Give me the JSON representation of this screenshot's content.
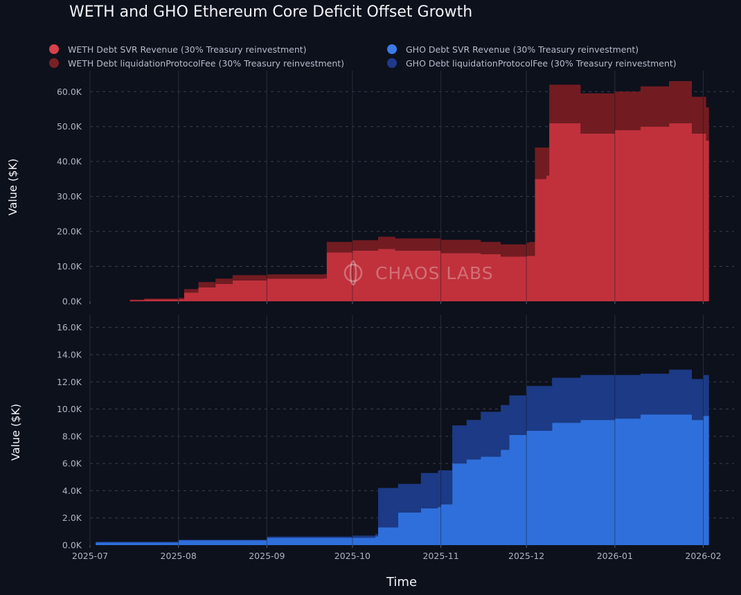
{
  "title": "WETH and GHO Ethereum Core Deficit Offset Growth",
  "legend": [
    {
      "label": "WETH Debt SVR Revenue (30% Treasury reinvestment)",
      "color": "#d8414b"
    },
    {
      "label": "WETH Debt liquidationProtocolFee (30% Treasury reinvestment)",
      "color": "#7a2024"
    },
    {
      "label": "GHO Debt SVR Revenue (30% Treasury reinvestment)",
      "color": "#3b7be8"
    },
    {
      "label": "GHO Debt liquidationProtocolFee (30% Treasury reinvestment)",
      "color": "#1f3a8c"
    }
  ],
  "watermark": "CHAOS LABS",
  "chart_data": [
    {
      "type": "area",
      "stacked": true,
      "ylabel": "Value ($K)",
      "ylim": [
        0,
        66
      ],
      "yticks": [
        0,
        10,
        20,
        30,
        40,
        50,
        60
      ],
      "ytick_labels": [
        "0.0K",
        "10.0K",
        "20.0K",
        "30.0K",
        "40.0K",
        "50.0K",
        "60.0K"
      ],
      "x": [
        "2025-07-03",
        "2025-07-15",
        "2025-07-20",
        "2025-08-01",
        "2025-08-03",
        "2025-08-08",
        "2025-08-14",
        "2025-08-20",
        "2025-09-01",
        "2025-09-15",
        "2025-09-21",
        "2025-09-22",
        "2025-10-01",
        "2025-10-10",
        "2025-10-16",
        "2025-11-01",
        "2025-11-15",
        "2025-11-22",
        "2025-12-01",
        "2025-12-02",
        "2025-12-04",
        "2025-12-08",
        "2025-12-09",
        "2025-12-20",
        "2026-01-01",
        "2026-01-10",
        "2026-01-20",
        "2026-01-28",
        "2026-02-02",
        "2026-02-03"
      ],
      "series": [
        {
          "name": "WETH Debt SVR Revenue (30% Treasury reinvestment)",
          "color": "#c0313c",
          "values": [
            0,
            0.3,
            0.5,
            0.6,
            2.5,
            4,
            5,
            6,
            6.5,
            6.5,
            6.6,
            14,
            14.5,
            15,
            14.5,
            13.8,
            13.5,
            12.8,
            13,
            13,
            35,
            36,
            51,
            48,
            49,
            50,
            51,
            48,
            46,
            43
          ]
        },
        {
          "name": "WETH Debt liquidationProtocolFee (30% Treasury reinvestment)",
          "color": "#721c21",
          "values": [
            0,
            0.2,
            0.3,
            0.4,
            1,
            1.5,
            1.5,
            1.5,
            1.2,
            1.2,
            1.2,
            3,
            3,
            3.5,
            3.5,
            3.8,
            3.5,
            3.5,
            3.8,
            4,
            9,
            8,
            11,
            11.5,
            11,
            11.5,
            12,
            10.5,
            9.5,
            12
          ]
        }
      ]
    },
    {
      "type": "area",
      "stacked": true,
      "xlabel": "Time",
      "ylabel": "Value ($K)",
      "ylim": [
        0,
        16.9
      ],
      "yticks": [
        0,
        2,
        4,
        6,
        8,
        10,
        12,
        14,
        16
      ],
      "ytick_labels": [
        "0.0K",
        "2.0K",
        "4.0K",
        "6.0K",
        "8.0K",
        "10.0K",
        "12.0K",
        "14.0K",
        "16.0K"
      ],
      "xtick_labels": [
        "2025-07",
        "2025-08",
        "2025-09",
        "2025-10",
        "2025-11",
        "2025-12",
        "2026-01",
        "2026-02"
      ],
      "x": [
        "2025-07-03",
        "2025-08-01",
        "2025-09-01",
        "2025-10-01",
        "2025-10-09",
        "2025-10-10",
        "2025-10-17",
        "2025-10-25",
        "2025-10-31",
        "2025-11-01",
        "2025-11-05",
        "2025-11-10",
        "2025-11-15",
        "2025-11-22",
        "2025-11-25",
        "2025-12-01",
        "2025-12-10",
        "2025-12-20",
        "2026-01-01",
        "2026-01-10",
        "2026-01-20",
        "2026-01-28",
        "2026-02-01",
        "2026-02-03"
      ],
      "series": [
        {
          "name": "GHO Debt SVR Revenue (30% Treasury reinvestment)",
          "color": "#2f6fdb",
          "values": [
            0.2,
            0.35,
            0.55,
            0.55,
            0.65,
            1.3,
            2.4,
            2.7,
            2.8,
            3,
            6,
            6.3,
            6.5,
            7,
            8.1,
            8.4,
            9,
            9.2,
            9.3,
            9.6,
            9.6,
            9.2,
            9.5,
            10.5
          ]
        },
        {
          "name": "GHO Debt liquidationProtocolFee (30% Treasury reinvestment)",
          "color": "#1c3a85",
          "values": [
            0.05,
            0.05,
            0.08,
            0.15,
            0.15,
            2.9,
            2.1,
            2.6,
            2.7,
            2.5,
            2.8,
            2.9,
            3.3,
            3.3,
            2.9,
            3.3,
            3.3,
            3.3,
            3.2,
            3.0,
            3.3,
            3.0,
            3.0,
            4.8
          ]
        }
      ]
    }
  ]
}
